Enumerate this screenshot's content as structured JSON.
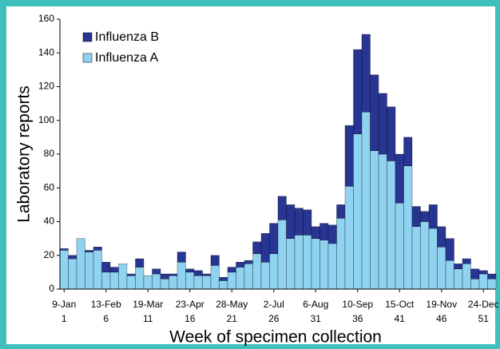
{
  "chart_data": {
    "type": "stacked_bar",
    "x_label": "Week of specimen collection",
    "y_label": "Laboratory reports",
    "x": [
      1,
      2,
      3,
      4,
      5,
      6,
      7,
      8,
      9,
      10,
      11,
      12,
      13,
      14,
      15,
      16,
      17,
      18,
      19,
      20,
      21,
      22,
      23,
      24,
      25,
      26,
      27,
      28,
      29,
      30,
      31,
      32,
      33,
      34,
      35,
      36,
      37,
      38,
      39,
      40,
      41,
      42,
      43,
      44,
      45,
      46,
      47,
      48,
      49,
      50,
      51,
      52
    ],
    "xticks": [
      1,
      6,
      11,
      16,
      21,
      26,
      31,
      36,
      41,
      46,
      51
    ],
    "xtick_dates": [
      "9-Jan",
      "13-Feb",
      "19-Mar",
      "23-Apr",
      "28-May",
      "2-Jul",
      "6-Aug",
      "10-Sep",
      "15-Oct",
      "19-Nov",
      "24-Dec"
    ],
    "series": [
      {
        "name": "Influenza A",
        "color": "#8fd3f0",
        "values": [
          23,
          18,
          30,
          22,
          23,
          10,
          10,
          15,
          8,
          13,
          8,
          9,
          6,
          8,
          16,
          10,
          8,
          8,
          14,
          5,
          10,
          13,
          15,
          21,
          16,
          21,
          41,
          30,
          32,
          32,
          30,
          29,
          27,
          42,
          61,
          92,
          105,
          82,
          80,
          76,
          51,
          73,
          37,
          40,
          36,
          25,
          17,
          12,
          15,
          6,
          9,
          6
        ]
      },
      {
        "name": "Influenza B",
        "color": "#283593",
        "values": [
          1,
          2,
          0,
          1,
          2,
          6,
          3,
          0,
          1,
          5,
          0,
          3,
          3,
          1,
          6,
          2,
          3,
          1,
          6,
          2,
          3,
          3,
          2,
          7,
          17,
          18,
          14,
          20,
          16,
          15,
          7,
          10,
          11,
          8,
          36,
          50,
          46,
          45,
          36,
          32,
          29,
          17,
          12,
          6,
          14,
          12,
          13,
          3,
          3,
          6,
          2,
          3
        ]
      }
    ],
    "ylim": [
      0,
      160
    ],
    "yticks": [
      0,
      20,
      40,
      60,
      80,
      100,
      120,
      140,
      160
    ],
    "legend": "upper left",
    "grid": false
  }
}
